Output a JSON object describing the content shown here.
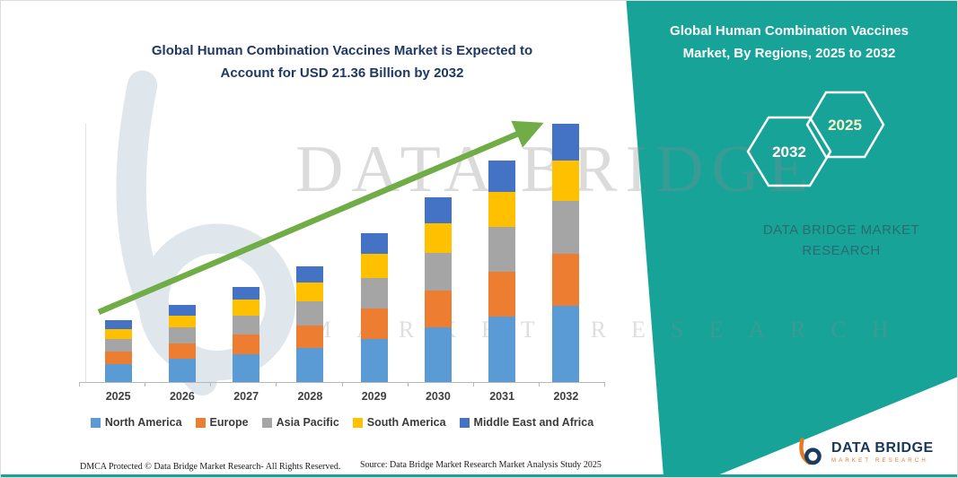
{
  "title": {
    "line1": "Global Human Combination Vaccines Market is Expected to",
    "line2": "Account for USD 21.36 Billion by 2032"
  },
  "panel": {
    "heading": "Global Human Combination Vaccines Market, By Regions, 2025 to 2032",
    "hexagon_back_label": "2032",
    "hexagon_front_label": "2025",
    "brand": "DATA BRIDGE MARKET RESEARCH",
    "color": "#17A398"
  },
  "watermark": {
    "line1": "DATA BRIDGE",
    "line2": "MARKET RESEARCH"
  },
  "chart_data": {
    "type": "bar",
    "stacked": true,
    "title": "Global Human Combination Vaccines Market is Expected to Account for USD 21.36 Billion by 2032",
    "unit": "USD Billion",
    "categories": [
      "2025",
      "2026",
      "2027",
      "2028",
      "2029",
      "2030",
      "2031",
      "2032"
    ],
    "series": [
      {
        "name": "North America",
        "color": "#5B9BD5",
        "values": [
          1.5,
          1.9,
          2.3,
          2.8,
          3.6,
          4.5,
          5.4,
          6.3
        ]
      },
      {
        "name": "Europe",
        "color": "#ED7D31",
        "values": [
          1.0,
          1.3,
          1.6,
          1.9,
          2.5,
          3.1,
          3.7,
          4.3
        ]
      },
      {
        "name": "Asia Pacific",
        "color": "#A5A5A5",
        "values": [
          1.1,
          1.3,
          1.6,
          2.0,
          2.5,
          3.1,
          3.7,
          4.4
        ]
      },
      {
        "name": "South America",
        "color": "#FFC000",
        "values": [
          0.8,
          1.0,
          1.3,
          1.5,
          2.0,
          2.4,
          2.9,
          3.3
        ]
      },
      {
        "name": "Middle East and Africa",
        "color": "#4472C4",
        "values": [
          0.7,
          0.9,
          1.1,
          1.4,
          1.7,
          2.2,
          2.6,
          3.06
        ]
      }
    ],
    "totals": [
      5.1,
      6.4,
      7.9,
      9.6,
      12.3,
      15.3,
      18.3,
      21.36
    ],
    "ylim": [
      0,
      22
    ],
    "grid": false,
    "y_axis_labels_visible": false,
    "legend_position": "bottom",
    "trend_arrow": {
      "show": true,
      "color": "#70AD47"
    }
  },
  "footer": {
    "dmca": "DMCA Protected © Data Bridge Market Research-  All Rights Reserved.",
    "source": "Source: Data Bridge Market Research  Market Analysis Study 2025"
  },
  "logo": {
    "title": "DATA BRIDGE",
    "subtitle": "MARKET RESEARCH"
  }
}
